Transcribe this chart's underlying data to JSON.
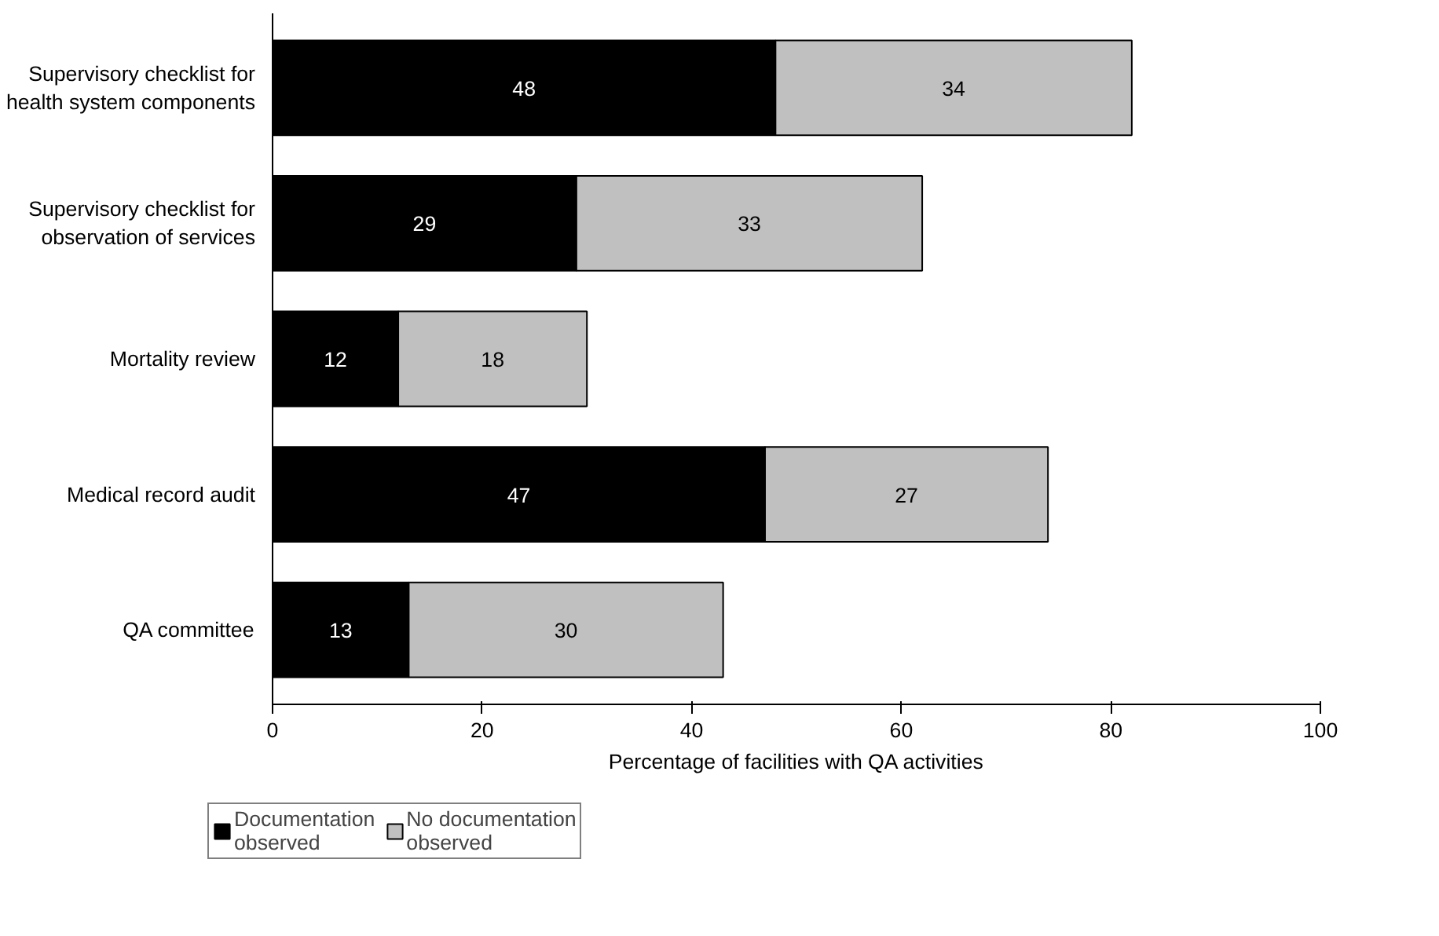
{
  "chart_data": {
    "type": "bar",
    "orientation": "horizontal",
    "stacked": true,
    "categories": [
      "Supervisory checklist for health system components",
      "Supervisory checklist for observation of services",
      "Mortality review",
      "Medical record audit",
      "QA committee"
    ],
    "series": [
      {
        "name": "Documentation observed",
        "color": "#000000",
        "values": [
          48,
          29,
          12,
          47,
          13
        ]
      },
      {
        "name": "No documentation observed",
        "color": "#c0c0c0",
        "values": [
          34,
          33,
          18,
          27,
          30
        ]
      }
    ],
    "xlabel": "Percentage of facilities with QA activities",
    "xlim": [
      0,
      100
    ],
    "xticks": [
      0,
      20,
      40,
      60,
      80,
      100
    ],
    "data_labels": true,
    "grid": false,
    "legend": "bottom"
  }
}
